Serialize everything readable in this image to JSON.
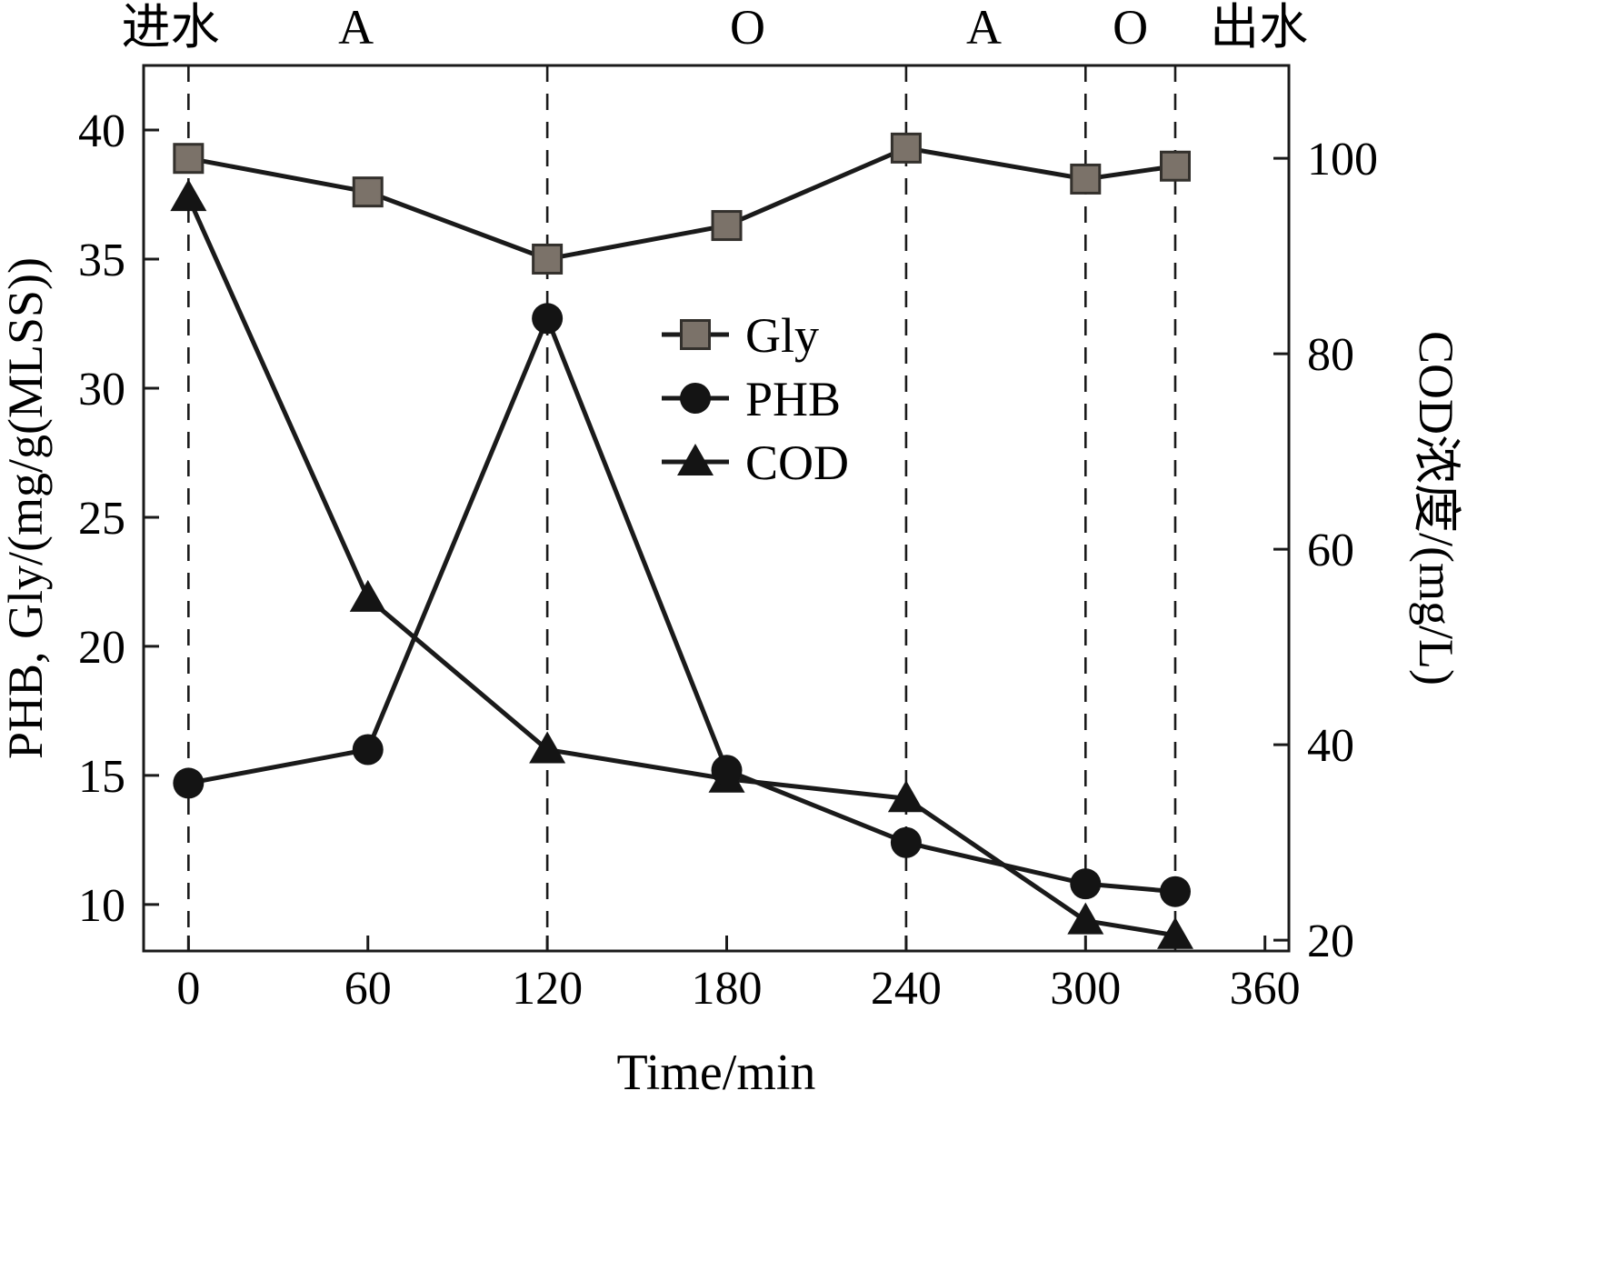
{
  "figure": {
    "background": "#ffffff"
  },
  "chart_data": {
    "type": "line",
    "title": "",
    "xlabel": "Time/min",
    "ylabel_left": "PHB, Gly/(mg/g(MLSS))",
    "ylabel_right": "COD浓度/(mg/L)",
    "x": [
      0,
      60,
      120,
      180,
      240,
      300,
      330
    ],
    "series": [
      {
        "name": "Gly",
        "axis": "left",
        "marker": "square",
        "values": [
          38.9,
          37.6,
          35.0,
          36.3,
          39.3,
          38.1,
          38.6
        ]
      },
      {
        "name": "PHB",
        "axis": "left",
        "marker": "circle",
        "values": [
          14.7,
          16.0,
          32.7,
          15.2,
          12.4,
          10.8,
          10.5
        ]
      },
      {
        "name": "COD",
        "axis": "right",
        "marker": "triangle",
        "values": [
          96,
          55,
          39.5,
          36.5,
          34.5,
          22,
          20.5
        ]
      }
    ],
    "xlim": [
      -15,
      368
    ],
    "ylim_left": [
      8.2,
      42.5
    ],
    "ylim_right": [
      18.9,
      109.5
    ],
    "xticks": [
      0,
      60,
      120,
      180,
      240,
      300,
      360
    ],
    "yticks_left": [
      10,
      15,
      20,
      25,
      30,
      35,
      40
    ],
    "yticks_right": [
      20,
      40,
      60,
      80,
      100
    ],
    "dashed_lines_x": [
      0,
      120,
      240,
      300,
      330
    ],
    "phase_labels": [
      {
        "text": "进水",
        "x": -6
      },
      {
        "text": "A",
        "x": 56
      },
      {
        "text": "O",
        "x": 187
      },
      {
        "text": "A",
        "x": 266
      },
      {
        "text": "O",
        "x": 315
      },
      {
        "text": "出水",
        "x": 358
      }
    ],
    "legend": {
      "entries": [
        "Gly",
        "PHB",
        "COD"
      ],
      "position": "inside-top-center"
    },
    "grid": false,
    "colors": {
      "line": "#1a1a1a",
      "marker": "#141414",
      "gly_fill": "#7b7269",
      "gly_edge": "#33302c",
      "background": "#ffffff"
    }
  }
}
